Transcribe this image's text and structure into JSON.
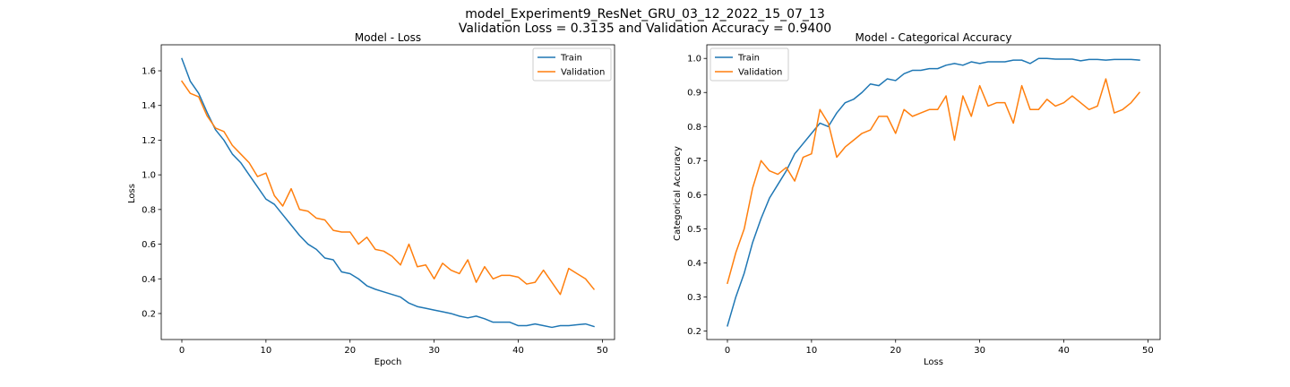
{
  "figure": {
    "suptitle_line1": "model_Experiment9_ResNet_GRU_03_12_2022_15_07_13",
    "suptitle_line2": "Validation Loss = 0.3135 and Validation Accuracy = 0.9400"
  },
  "colors": {
    "train": "#1f77b4",
    "validation": "#ff7f0e"
  },
  "chart_data": [
    {
      "type": "line",
      "title": "Model - Loss",
      "xlabel": "Epoch",
      "ylabel": "Loss",
      "xlim": [
        -2.45,
        51.45
      ],
      "ylim": [
        0.05,
        1.75
      ],
      "xticks": [
        0,
        10,
        20,
        30,
        40,
        50
      ],
      "xtick_labels": [
        "0",
        "10",
        "20",
        "30",
        "40",
        "50"
      ],
      "yticks": [
        0.2,
        0.4,
        0.6,
        0.8,
        1.0,
        1.2,
        1.4,
        1.6
      ],
      "ytick_labels": [
        "0.2",
        "0.4",
        "0.6",
        "0.8",
        "1.0",
        "1.2",
        "1.4",
        "1.6"
      ],
      "grid": false,
      "legend": "top-right",
      "x": [
        0,
        1,
        2,
        3,
        4,
        5,
        6,
        7,
        8,
        9,
        10,
        11,
        12,
        13,
        14,
        15,
        16,
        17,
        18,
        19,
        20,
        21,
        22,
        23,
        24,
        25,
        26,
        27,
        28,
        29,
        30,
        31,
        32,
        33,
        34,
        35,
        36,
        37,
        38,
        39,
        40,
        41,
        42,
        43,
        44,
        45,
        46,
        47,
        48,
        49
      ],
      "series": [
        {
          "name": "Train",
          "values": [
            1.67,
            1.54,
            1.47,
            1.36,
            1.26,
            1.2,
            1.12,
            1.07,
            1.0,
            0.93,
            0.86,
            0.83,
            0.77,
            0.71,
            0.65,
            0.6,
            0.57,
            0.52,
            0.51,
            0.44,
            0.43,
            0.4,
            0.36,
            0.34,
            0.325,
            0.31,
            0.295,
            0.26,
            0.24,
            0.23,
            0.22,
            0.21,
            0.2,
            0.185,
            0.175,
            0.185,
            0.17,
            0.15,
            0.15,
            0.15,
            0.13,
            0.13,
            0.14,
            0.13,
            0.12,
            0.13,
            0.13,
            0.135,
            0.14,
            0.125
          ]
        },
        {
          "name": "Validation",
          "values": [
            1.54,
            1.47,
            1.45,
            1.34,
            1.27,
            1.25,
            1.17,
            1.12,
            1.07,
            0.99,
            1.01,
            0.88,
            0.82,
            0.92,
            0.8,
            0.79,
            0.75,
            0.74,
            0.68,
            0.67,
            0.67,
            0.6,
            0.64,
            0.57,
            0.56,
            0.53,
            0.48,
            0.6,
            0.47,
            0.48,
            0.4,
            0.49,
            0.45,
            0.43,
            0.51,
            0.38,
            0.47,
            0.4,
            0.42,
            0.42,
            0.41,
            0.37,
            0.38,
            0.45,
            0.38,
            0.31,
            0.46,
            0.43,
            0.4,
            0.34
          ]
        }
      ]
    },
    {
      "type": "line",
      "title": "Model - Categorical Accuracy",
      "xlabel": "Loss",
      "ylabel": "Categorical Accuracy",
      "xlim": [
        -2.45,
        51.45
      ],
      "ylim": [
        0.175,
        1.04
      ],
      "xticks": [
        0,
        10,
        20,
        30,
        40,
        50
      ],
      "xtick_labels": [
        "0",
        "10",
        "20",
        "30",
        "40",
        "50"
      ],
      "yticks": [
        0.2,
        0.3,
        0.4,
        0.5,
        0.6,
        0.7,
        0.8,
        0.9,
        1.0
      ],
      "ytick_labels": [
        "0.2",
        "0.3",
        "0.4",
        "0.5",
        "0.6",
        "0.7",
        "0.8",
        "0.9",
        "1.0"
      ],
      "grid": false,
      "legend": "top-left",
      "x": [
        0,
        1,
        2,
        3,
        4,
        5,
        6,
        7,
        8,
        9,
        10,
        11,
        12,
        13,
        14,
        15,
        16,
        17,
        18,
        19,
        20,
        21,
        22,
        23,
        24,
        25,
        26,
        27,
        28,
        29,
        30,
        31,
        32,
        33,
        34,
        35,
        36,
        37,
        38,
        39,
        40,
        41,
        42,
        43,
        44,
        45,
        46,
        47,
        48,
        49
      ],
      "series": [
        {
          "name": "Train",
          "values": [
            0.215,
            0.3,
            0.37,
            0.46,
            0.53,
            0.59,
            0.63,
            0.67,
            0.72,
            0.75,
            0.78,
            0.81,
            0.8,
            0.84,
            0.87,
            0.88,
            0.9,
            0.925,
            0.92,
            0.94,
            0.935,
            0.955,
            0.965,
            0.965,
            0.97,
            0.97,
            0.98,
            0.985,
            0.98,
            0.99,
            0.985,
            0.99,
            0.99,
            0.99,
            0.995,
            0.995,
            0.985,
            1.0,
            1.0,
            0.998,
            0.998,
            0.998,
            0.993,
            0.997,
            0.997,
            0.995,
            0.997,
            0.997,
            0.997,
            0.995
          ]
        },
        {
          "name": "Validation",
          "values": [
            0.34,
            0.43,
            0.5,
            0.62,
            0.7,
            0.67,
            0.66,
            0.68,
            0.64,
            0.71,
            0.72,
            0.85,
            0.81,
            0.71,
            0.74,
            0.76,
            0.78,
            0.79,
            0.83,
            0.83,
            0.78,
            0.85,
            0.83,
            0.84,
            0.85,
            0.85,
            0.89,
            0.76,
            0.89,
            0.83,
            0.92,
            0.86,
            0.87,
            0.87,
            0.81,
            0.92,
            0.85,
            0.85,
            0.88,
            0.86,
            0.87,
            0.89,
            0.87,
            0.85,
            0.86,
            0.94,
            0.84,
            0.85,
            0.87,
            0.9
          ]
        }
      ]
    }
  ]
}
